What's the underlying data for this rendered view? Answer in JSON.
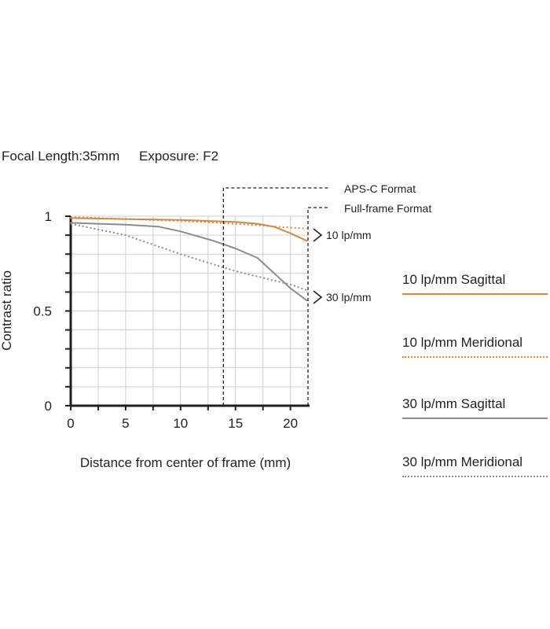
{
  "header": {
    "focal_length": "Focal Length:35mm",
    "exposure": "Exposure: F2"
  },
  "legend": [
    {
      "label": "10 lp/mm Sagittal",
      "color": "#d08a48",
      "style": "solid"
    },
    {
      "label": "10 lp/mm Meridional",
      "color": "#d08a48",
      "style": "dotted"
    },
    {
      "label": "30 lp/mm Sagittal",
      "color": "#8c8c8c",
      "style": "solid"
    },
    {
      "label": "30 lp/mm Meridional",
      "color": "#8c8c8c",
      "style": "dotted"
    }
  ],
  "chart_data": {
    "type": "line",
    "title": "",
    "xlabel": "Distance from center of frame (mm)",
    "ylabel": "Contrast ratio",
    "xlim": [
      0,
      21.6
    ],
    "ylim": [
      0,
      1
    ],
    "x_ticks": [
      "0",
      "5",
      "10",
      "15",
      "20"
    ],
    "x_tick_values": [
      0,
      5,
      10,
      15,
      20
    ],
    "y_ticks": [
      "0",
      "0.5",
      "1"
    ],
    "y_tick_values": [
      0,
      0.5,
      1
    ],
    "grid": true,
    "series": [
      {
        "name": "10 lp/mm Sagittal",
        "color": "#d08a48",
        "style": "solid",
        "x": [
          0,
          5,
          10,
          15,
          17,
          18.5,
          20,
          21.5
        ],
        "y": [
          0.99,
          0.985,
          0.98,
          0.97,
          0.96,
          0.945,
          0.91,
          0.87
        ]
      },
      {
        "name": "10 lp/mm Meridional",
        "color": "#d08a48",
        "style": "dotted",
        "x": [
          0,
          5,
          10,
          15,
          20,
          21.5
        ],
        "y": [
          0.995,
          0.985,
          0.975,
          0.96,
          0.94,
          0.935
        ]
      },
      {
        "name": "30 lp/mm Sagittal",
        "color": "#8c8c8c",
        "style": "solid",
        "x": [
          0,
          5,
          8,
          10,
          13,
          15,
          17,
          18.5,
          20,
          21.5
        ],
        "y": [
          0.965,
          0.955,
          0.945,
          0.92,
          0.87,
          0.83,
          0.78,
          0.7,
          0.62,
          0.555
        ]
      },
      {
        "name": "30 lp/mm Meridional",
        "color": "#8c8c8c",
        "style": "dotted",
        "x": [
          0,
          5,
          10,
          15,
          20,
          21.5
        ],
        "y": [
          0.96,
          0.9,
          0.8,
          0.71,
          0.64,
          0.61
        ]
      }
    ],
    "format_markers": [
      {
        "label": "APS-C Format",
        "x": 13.9
      },
      {
        "label": "Full-frame Format",
        "x": 21.6
      }
    ],
    "group_labels": [
      {
        "label": "10 lp/mm",
        "value": 0.9
      },
      {
        "label": "30 lp/mm",
        "value": 0.57
      }
    ]
  }
}
